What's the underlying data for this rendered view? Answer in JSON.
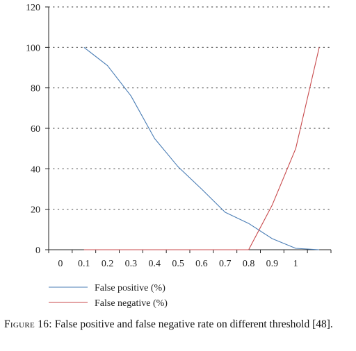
{
  "chart_data": {
    "type": "line",
    "x_tick_labels": [
      "0",
      "0.1",
      "0.2",
      "0.3",
      "0.4",
      "0.5",
      "0.6",
      "0.7",
      "0.8",
      "0.9",
      "1"
    ],
    "x_ticks": [
      0,
      0.1,
      0.2,
      0.3,
      0.4,
      0.5,
      0.6,
      0.7,
      0.8,
      0.9,
      1.0
    ],
    "xlim": [
      -0.05,
      1.15
    ],
    "y_ticks": [
      0,
      20,
      40,
      60,
      80,
      100,
      120
    ],
    "ylim": [
      0,
      120
    ],
    "grid": "horizontal-dotted",
    "legend_position": "bottom-left",
    "series": [
      {
        "name": "False positive (%)",
        "color": "#4a7db5",
        "x": [
          0.1,
          0.2,
          0.3,
          0.4,
          0.5,
          0.6,
          0.7,
          0.8,
          0.9,
          1.0,
          1.1
        ],
        "y": [
          100,
          91,
          76,
          55,
          41,
          30,
          18.5,
          13,
          5.5,
          0.7,
          0
        ]
      },
      {
        "name": "False negative (%)",
        "color": "#c8494b",
        "x": [
          0.1,
          0.2,
          0.3,
          0.4,
          0.5,
          0.6,
          0.7,
          0.8,
          0.9,
          1.0,
          1.1
        ],
        "y": [
          0,
          0,
          0,
          0,
          0,
          0,
          0,
          0,
          22,
          50,
          100
        ]
      }
    ]
  },
  "caption": {
    "label": "Figure 16:",
    "text": "False positive and false negative rate on different threshold [48]."
  }
}
